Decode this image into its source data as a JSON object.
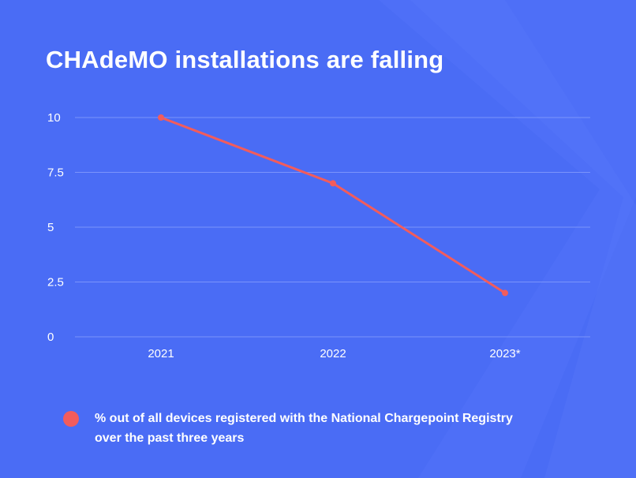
{
  "chart_data": {
    "type": "line",
    "title": "CHAdeMO installations are falling",
    "categories": [
      "2021",
      "2022",
      "2023*"
    ],
    "series": [
      {
        "name": "% out of all devices registered with the National Chargepoint Registry over the past three years",
        "values": [
          10,
          7,
          2
        ]
      }
    ],
    "yticks": [
      "10",
      "7.5",
      "5",
      "2.5",
      "0"
    ],
    "ylim": [
      0,
      10
    ],
    "grid": true,
    "legend_position": "bottom-left",
    "line_color": "#f25c5c",
    "background_color": "#4a6cf5",
    "grid_color": "#7b94fb",
    "text_color": "#ffffff"
  }
}
